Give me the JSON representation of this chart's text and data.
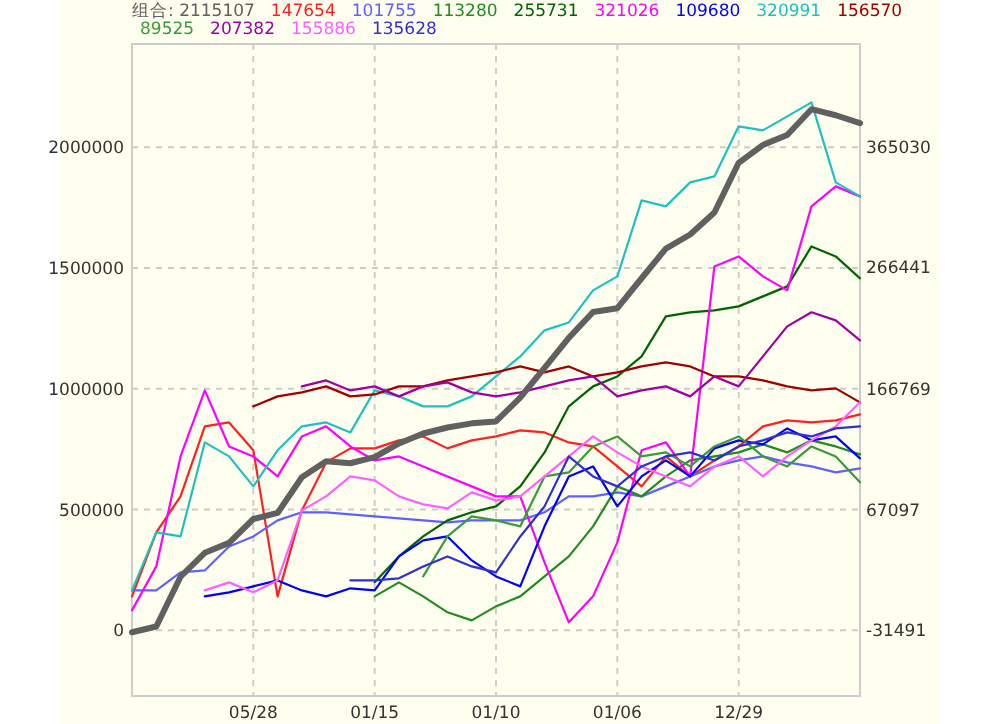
{
  "chart_data": {
    "type": "line",
    "legend": "top",
    "grid": true,
    "line_style": "solid",
    "categories": [
      null,
      null,
      null,
      null,
      null,
      "05/28",
      null,
      null,
      null,
      null,
      "01/15",
      null,
      null,
      null,
      null,
      "01/10",
      null,
      null,
      null,
      null,
      "01/06",
      null,
      null,
      null,
      null,
      "12/29",
      null,
      null,
      null,
      null,
      null
    ],
    "ylim": [
      -272000,
      2428000
    ],
    "yticks": [
      0,
      500000,
      1000000,
      1500000,
      2000000
    ],
    "y2lim": [
      -85400,
      449900
    ],
    "y2ticks": [
      -31491,
      67097,
      166769,
      266441,
      365030
    ],
    "series": [
      {
        "name": "组合: 2115107",
        "color": "#606060",
        "values": [
          -8000,
          16000,
          222000,
          321000,
          362000,
          461000,
          486000,
          634000,
          700000,
          692000,
          717000,
          774000,
          815000,
          840000,
          857000,
          865000,
          964000,
          1087000,
          1211000,
          1318000,
          1334000,
          1458000,
          1581000,
          1639000,
          1730000,
          1936000,
          2010000,
          2051000,
          2158000,
          2133000,
          2100000
        ]
      },
      {
        "name": "147654",
        "color": "#ff2020",
        "axis": "y2",
        "values": [
          -3600,
          48900,
          78500,
          136000,
          139200,
          116300,
          -3600,
          67000,
          106400,
          117900,
          117900,
          124500,
          127700,
          117900,
          124500,
          127700,
          132700,
          131000,
          122800,
          119500,
          103100,
          86700,
          111300,
          94900,
          108000,
          119500,
          136000,
          140900,
          139200,
          140900,
          145800
        ]
      },
      {
        "name": "101755",
        "color": "#6060ff",
        "axis": "y2",
        "values": [
          1300,
          1300,
          16100,
          17700,
          37400,
          45600,
          58800,
          65400,
          65400,
          63700,
          62100,
          60400,
          58800,
          57100,
          58800,
          58800,
          58800,
          65400,
          78500,
          78500,
          81800,
          78500,
          86700,
          94900,
          103100,
          108000,
          111300,
          106400,
          103100,
          98200,
          101500
        ]
      },
      {
        "name": "113280",
        "color": "#228b22",
        "axis": "y2",
        "values": [
          null,
          null,
          null,
          null,
          null,
          null,
          null,
          null,
          null,
          null,
          -3600,
          7900,
          -3600,
          -16700,
          -23300,
          -11800,
          -3600,
          12800,
          29200,
          53900,
          86700,
          78500,
          94900,
          108000,
          111300,
          114600,
          121200,
          114600,
          124500,
          119500,
          113000
        ]
      },
      {
        "name": "255731",
        "color": "#006400",
        "axis": "y2",
        "values": [
          null,
          null,
          null,
          null,
          null,
          null,
          null,
          null,
          null,
          null,
          7900,
          29200,
          45600,
          58800,
          65400,
          70300,
          86700,
          114600,
          152400,
          168800,
          177000,
          193400,
          226300,
          229600,
          231200,
          234500,
          242700,
          250900,
          283700,
          275500,
          257500
        ]
      },
      {
        "name": "321026",
        "color": "#ff00ff",
        "axis": "y2",
        "values": [
          -15100,
          21000,
          111300,
          165500,
          119500,
          111300,
          94900,
          127700,
          136000,
          119500,
          108000,
          111300,
          103100,
          94900,
          86700,
          78500,
          78500,
          24300,
          -24900,
          -3600,
          40700,
          116300,
          122800,
          94900,
          267300,
          275500,
          259100,
          247600,
          316600,
          333000,
          324800
        ]
      },
      {
        "name": "109680",
        "color": "#0000ff",
        "axis": "y2",
        "values": [
          null,
          null,
          null,
          -3600,
          -300,
          4600,
          9500,
          1300,
          -3600,
          3000,
          1300,
          29200,
          42400,
          45600,
          25900,
          12800,
          4600,
          53900,
          94900,
          103100,
          70300,
          94900,
          108000,
          94900,
          117900,
          124500,
          121200,
          134300,
          124500,
          127700,
          109700
        ]
      },
      {
        "name": "320991",
        "color": "#20c0c0",
        "axis": "y2",
        "values": [
          1300,
          48900,
          45600,
          122800,
          111300,
          86700,
          116300,
          136000,
          139200,
          131000,
          165500,
          160600,
          152400,
          152400,
          160600,
          177000,
          193400,
          214800,
          221300,
          247600,
          259100,
          321500,
          316600,
          336300,
          341200,
          382300,
          379000,
          390500,
          402000,
          336300,
          324800
        ]
      },
      {
        "name": "156570",
        "color": "#a00000",
        "axis": "y2",
        "values": [
          null,
          null,
          null,
          null,
          null,
          152400,
          160600,
          163900,
          168800,
          160600,
          162200,
          168800,
          168800,
          173700,
          177000,
          180300,
          185200,
          180300,
          185200,
          177000,
          180300,
          185200,
          188500,
          185200,
          177000,
          177000,
          173700,
          168800,
          165500,
          167200,
          155700
        ]
      },
      {
        "name": "89525",
        "color": "#3c9a3c",
        "axis": "y2",
        "values": [
          null,
          null,
          null,
          null,
          null,
          null,
          null,
          null,
          null,
          null,
          null,
          null,
          12800,
          45600,
          62100,
          58800,
          53900,
          94900,
          98200,
          119500,
          127700,
          111300,
          114600,
          103100,
          119500,
          127700,
          111300,
          103100,
          119500,
          111300,
          90000
        ]
      },
      {
        "name": "207382",
        "color": "#a000a0",
        "axis": "y2",
        "values": [
          null,
          null,
          null,
          null,
          null,
          null,
          null,
          168800,
          173700,
          165500,
          168800,
          160600,
          168800,
          172100,
          163900,
          160600,
          163900,
          168800,
          173700,
          177000,
          160600,
          165500,
          168800,
          160600,
          177000,
          168800,
          193400,
          218100,
          229600,
          223000,
          206600
        ]
      },
      {
        "name": "155886",
        "color": "#ff60ff",
        "axis": "y2",
        "values": [
          null,
          null,
          null,
          1300,
          7900,
          -300,
          9500,
          67000,
          78500,
          94900,
          91600,
          78500,
          71900,
          68600,
          81800,
          75200,
          78500,
          94900,
          111300,
          127700,
          114600,
          103100,
          94900,
          86700,
          103100,
          111300,
          94900,
          111300,
          124500,
          136000,
          155700
        ]
      },
      {
        "name": "135628",
        "color": "#3030d0",
        "axis": "y2",
        "values": [
          null,
          null,
          null,
          null,
          null,
          null,
          null,
          null,
          null,
          9500,
          9500,
          11200,
          21000,
          29200,
          21000,
          16100,
          45600,
          70300,
          111300,
          94900,
          86700,
          103100,
          111300,
          114600,
          108000,
          119500,
          124500,
          131000,
          127700,
          134300,
          136000
        ]
      }
    ]
  }
}
